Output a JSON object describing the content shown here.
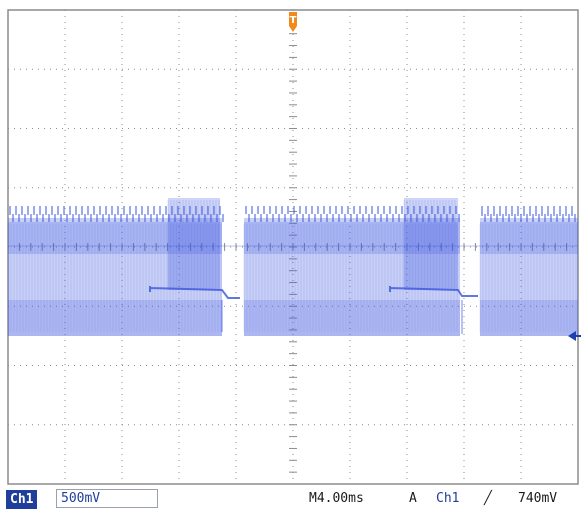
{
  "window": {
    "background": "#ffffff",
    "grid_color": "#8c8c8c",
    "trace_color": "#3a55e0",
    "trigger_marker_color": "#f08a1c"
  },
  "graticule": {
    "divisions_x": 10,
    "divisions_y": 8
  },
  "markers": {
    "trigger_position": {
      "label": "T",
      "icon": "trigger-position-icon"
    },
    "channel_ground": {
      "icon": "channel-ground-arrow-icon"
    }
  },
  "status": {
    "channel": "Ch1",
    "volts_per_div": "500mV",
    "timebase": "M4.00ms",
    "trigger_source_label": "A",
    "trigger_channel": "Ch1",
    "trigger_edge": "╱",
    "trigger_level": "740mV"
  }
}
